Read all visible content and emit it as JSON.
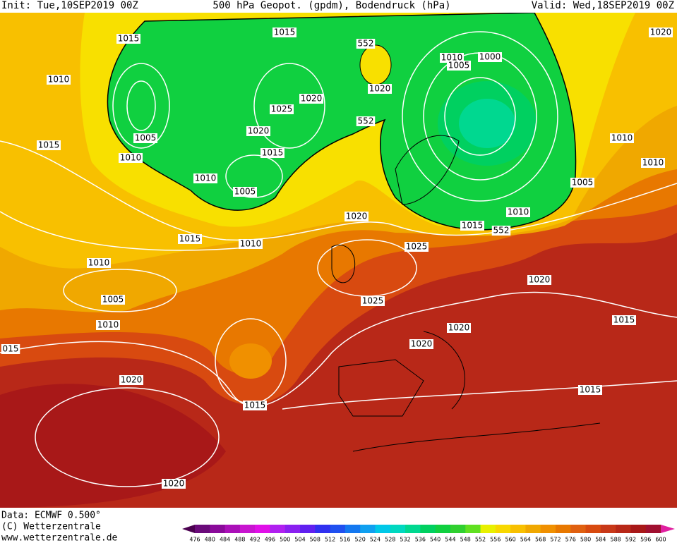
{
  "header": {
    "init": "Init: Tue,10SEP2019 00Z",
    "title": "500 hPa Geopot. (gpdm), Bodendruck (hPa)",
    "valid": "Valid: Wed,18SEP2019 00Z"
  },
  "isobar_labels": [
    "1015",
    "1015",
    "1010",
    "552",
    "1020",
    "1010",
    "1000",
    "1005",
    "1020",
    "1020",
    "1025",
    "1020",
    "552",
    "1005",
    "1015",
    "1010",
    "1015",
    "1010",
    "1005",
    "1010",
    "1010",
    "1005",
    "1010",
    "1015",
    "552",
    "1020",
    "1015",
    "1010",
    "1025",
    "1010",
    "1020",
    "1005",
    "1025",
    "1010",
    "1020",
    "1015",
    "1020",
    "015",
    "1020",
    "1015",
    "1015",
    "1020"
  ],
  "colorbar": {
    "levels": [
      476,
      480,
      484,
      488,
      492,
      496,
      500,
      504,
      508,
      512,
      516,
      520,
      524,
      528,
      532,
      536,
      540,
      544,
      548,
      552,
      556,
      560,
      564,
      568,
      572,
      576,
      580,
      584,
      588,
      592,
      596,
      600
    ],
    "colors": [
      "#4b0050",
      "#6a0a7a",
      "#8a0a9a",
      "#aa10b8",
      "#c815d0",
      "#e010e8",
      "#b020f0",
      "#8a20f0",
      "#6020f0",
      "#3030f0",
      "#2050f0",
      "#1478f0",
      "#10a0f0",
      "#00c8e8",
      "#00d8c0",
      "#00d890",
      "#00d060",
      "#10d040",
      "#30d030",
      "#60e020",
      "#e8f000",
      "#f8d800",
      "#f8c000",
      "#f0a800",
      "#f09000",
      "#e87800",
      "#e06010",
      "#d84a10",
      "#c83818",
      "#b82818",
      "#a81818",
      "#a01030",
      "#e020a0"
    ]
  },
  "footer": {
    "data": "Data: ECMWF  0.500°",
    "copyright": "(C) Wetterzentrale",
    "url": "www.wetterzentrale.de"
  }
}
